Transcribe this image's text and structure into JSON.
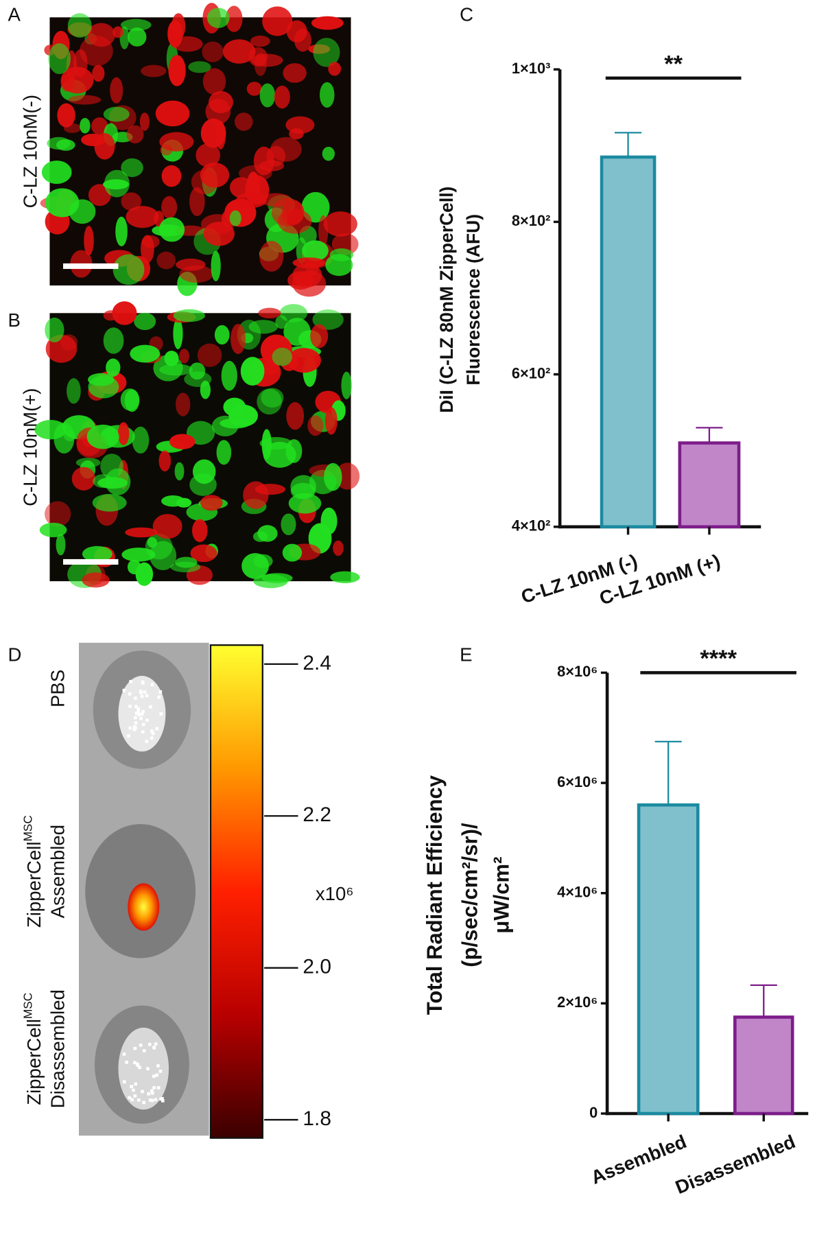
{
  "panel_labels": [
    "A",
    "B",
    "C",
    "D",
    "E"
  ],
  "images": {
    "row_labels": [
      "C-LZ 10nM(-)",
      "C-LZ 10nM(+)"
    ]
  },
  "chart_data": [
    {
      "type": "colorbar",
      "ylim": [
        1.776,
        2.425
      ],
      "yticks": [
        2.4,
        2.2,
        {
          "value": 2.0,
          "label": "2.0"
        },
        1.8
      ],
      "unit_label": "x10⁶",
      "colors": [
        "#ffff30",
        "#ff9800",
        "#ff2000",
        "#b80000",
        "#3a0000"
      ],
      "row_labels": [
        {
          "label": "PBS"
        },
        {
          "label": "ZipperCell",
          "superscript": "MSC",
          "line2": "Assembled"
        },
        {
          "label": "ZipperCell",
          "superscript": "MSC",
          "line2": "Disassembled"
        }
      ]
    },
    {
      "type": "bar",
      "categories": [
        "C-LZ 10nM (-)",
        "C-LZ 10nM (+)"
      ],
      "values": [
        885,
        510
      ],
      "errors": [
        32,
        20
      ],
      "colors": [
        "#80c0cc",
        "#c086c8"
      ],
      "edge_colors": [
        "#1b8aa0",
        "#7d1d8a"
      ],
      "ylim": [
        400,
        1000
      ],
      "yticks": [
        {
          "value": 400,
          "label": "4×10²"
        },
        {
          "value": 600,
          "label": "6×10²"
        },
        {
          "value": 800,
          "label": "8×10²"
        },
        {
          "value": 1000,
          "label": "1×10³"
        }
      ],
      "ylabel": [
        "DiI (C-LZ 80nM ZipperCell)",
        "Fluorescence (AFU)"
      ],
      "significance": "**"
    },
    {
      "type": "bar",
      "categories": [
        "Assembled",
        "Disassembled"
      ],
      "values": [
        5600000,
        1750000
      ],
      "errors": [
        1150000,
        580000
      ],
      "colors": [
        "#80c0cc",
        "#c086c8"
      ],
      "edge_colors": [
        "#1b8aa0",
        "#7d1d8a"
      ],
      "ylim": [
        0,
        8000000
      ],
      "yticks": [
        0,
        {
          "value": 2000000,
          "label": "2×10⁶"
        },
        {
          "value": 4000000,
          "label": "4×10⁶"
        },
        {
          "value": 6000000,
          "label": "6×10⁶"
        },
        {
          "value": 8000000,
          "label": "8×10⁶"
        }
      ],
      "ylabel": [
        "Total Radiant Efficiency",
        "(p/sec/cm²/sr)/",
        "μW/cm²"
      ],
      "significance": "****"
    }
  ]
}
